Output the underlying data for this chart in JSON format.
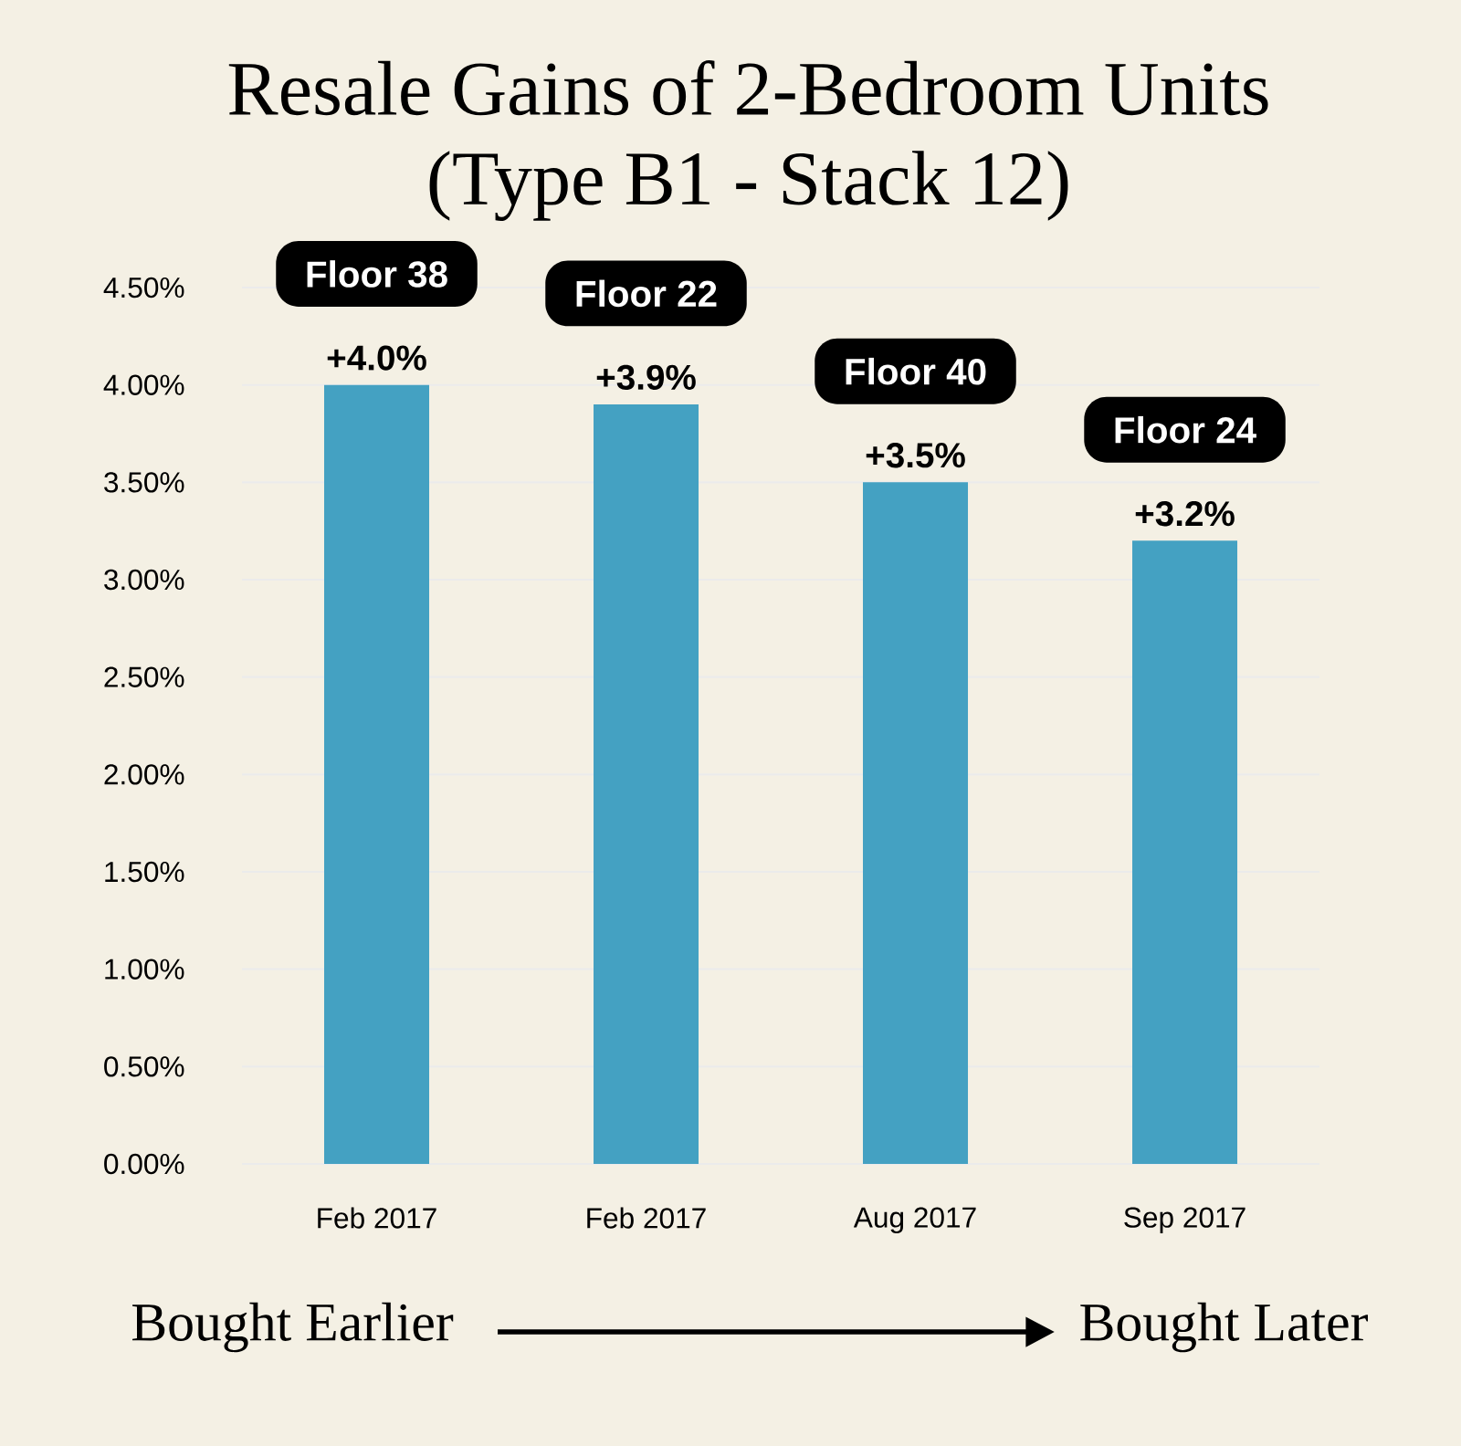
{
  "chart_data": {
    "type": "bar",
    "title": "Resale Gains of 2-Bedroom Units\n(Type B1 - Stack 12)",
    "categories": [
      "Feb 2017",
      "Feb 2017",
      "Aug 2017",
      "Sep 2017"
    ],
    "values": [
      4.0,
      3.9,
      3.5,
      3.2
    ],
    "value_labels": [
      "+4.0%",
      "+3.9%",
      "+3.5%",
      "+3.2%"
    ],
    "color": "#44a1c2",
    "ylim": [
      0,
      4.5
    ],
    "yticks": [
      {
        "value": 0,
        "label": "0.00%"
      },
      {
        "value": 0.5,
        "label": "0.50%"
      },
      {
        "value": 1,
        "label": "1.00%"
      },
      {
        "value": 1.5,
        "label": "1.50%"
      },
      {
        "value": 2,
        "label": "2.00%"
      },
      {
        "value": 2.5,
        "label": "2.50%"
      },
      {
        "value": 3,
        "label": "3.00%"
      },
      {
        "value": 3.5,
        "label": "3.50%"
      },
      {
        "value": 4,
        "label": "4.00%"
      },
      {
        "value": 4.5,
        "label": "4.50%"
      }
    ],
    "grid": "y",
    "annotations": [
      "Floor 38",
      "Floor 22",
      "Floor 40",
      "Floor 24",
      "Bought Earlier",
      "Bought Later"
    ]
  }
}
